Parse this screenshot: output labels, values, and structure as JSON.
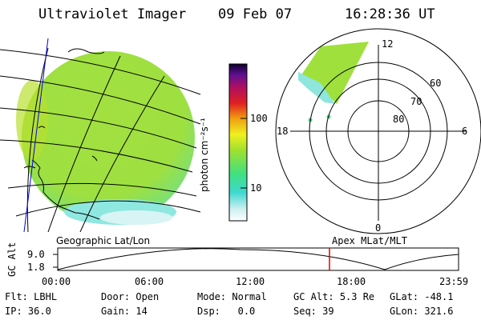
{
  "header": {
    "title": "Ultraviolet Imager",
    "date": "09 Feb 07",
    "time": "16:28:36 UT"
  },
  "colorbar": {
    "unit_label": "photon cm⁻²s⁻¹",
    "ticks": [
      "100",
      "10"
    ]
  },
  "polar": {
    "lat_labels": [
      "60",
      "70",
      "80"
    ],
    "mlt_labels": [
      "12",
      "18",
      "6",
      "0"
    ]
  },
  "map_captions": {
    "left": "Geographic Lat/Lon",
    "right": "Apex MLat/MLT"
  },
  "orbit": {
    "ylabel": "GC Alt",
    "y_ticks": [
      "9.0",
      "1.8"
    ],
    "x_ticks": [
      "00:00",
      "06:00",
      "12:00",
      "18:00",
      "23:59"
    ],
    "current_marker_time": "16:28"
  },
  "info": {
    "row1": [
      {
        "key": "Flt:",
        "value": "LBHL"
      },
      {
        "key": "Door:",
        "value": "Open"
      },
      {
        "key": "Mode:",
        "value": "Normal"
      },
      {
        "key": "GC Alt:",
        "value": "5.3 Re"
      },
      {
        "key": "GLat:",
        "value": "-48.1"
      }
    ],
    "row2": [
      {
        "key": "IP:",
        "value": "36.0"
      },
      {
        "key": "Gain:",
        "value": "14"
      },
      {
        "key": "Dsp:",
        "value": "0.0"
      },
      {
        "key": "Seq:",
        "value": "39"
      },
      {
        "key": "GLon:",
        "value": "321.6"
      }
    ]
  },
  "colors": {
    "accent_marker": "#e00000",
    "image_green": "#a8e23a",
    "image_cyan": "#6fe3d8"
  }
}
